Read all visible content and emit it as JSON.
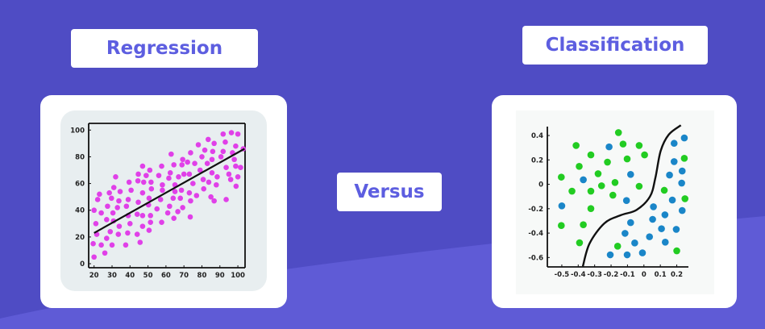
{
  "labels": {
    "regression": "Regression",
    "classification": "Classification",
    "versus": "Versus"
  },
  "colors": {
    "background": "#4f4cc4",
    "background_curve": "#5f5bd6",
    "label_text": "#5d5ee0",
    "regression_point": "#e040e8",
    "class_green": "#22cc22",
    "class_blue": "#1a86c8",
    "line": "#111111"
  },
  "chart_data": [
    {
      "type": "scatter",
      "title": "",
      "xlim": [
        17,
        104
      ],
      "ylim": [
        -3,
        105
      ],
      "x_ticks": [
        "20",
        "30",
        "40",
        "50",
        "60",
        "70",
        "80",
        "90",
        "100"
      ],
      "y_ticks": [
        "0",
        "20",
        "40",
        "60",
        "80",
        "100"
      ],
      "fit_line": [
        [
          20,
          23
        ],
        [
          103.7,
          86
        ]
      ],
      "points": [
        [
          20,
          5
        ],
        [
          19.5,
          15
        ],
        [
          21.5,
          22
        ],
        [
          21,
          30
        ],
        [
          20,
          40
        ],
        [
          22,
          48
        ],
        [
          23,
          52
        ],
        [
          24,
          38
        ],
        [
          24,
          14
        ],
        [
          26,
          8
        ],
        [
          27,
          19
        ],
        [
          27,
          33
        ],
        [
          27.5,
          43
        ],
        [
          28.5,
          53
        ],
        [
          29.7,
          49
        ],
        [
          29,
          24
        ],
        [
          30,
          14
        ],
        [
          30.5,
          38
        ],
        [
          30.8,
          32
        ],
        [
          31,
          57
        ],
        [
          32,
          65
        ],
        [
          33,
          42
        ],
        [
          33.5,
          22
        ],
        [
          33.8,
          47
        ],
        [
          34,
          28
        ],
        [
          34.5,
          54
        ],
        [
          37.6,
          14
        ],
        [
          38,
          43
        ],
        [
          38.7,
          23
        ],
        [
          39,
          36
        ],
        [
          39,
          48
        ],
        [
          39.5,
          61
        ],
        [
          40,
          30
        ],
        [
          40.6,
          55
        ],
        [
          44,
          22
        ],
        [
          44,
          37
        ],
        [
          44.4,
          62
        ],
        [
          44.6,
          67
        ],
        [
          44.6,
          46
        ],
        [
          45.6,
          16
        ],
        [
          47,
          53
        ],
        [
          47,
          73
        ],
        [
          47,
          36
        ],
        [
          47,
          28
        ],
        [
          47.6,
          61
        ],
        [
          49,
          66
        ],
        [
          50.3,
          44
        ],
        [
          50.6,
          25
        ],
        [
          50.6,
          49
        ],
        [
          51,
          70
        ],
        [
          51.4,
          31
        ],
        [
          51.4,
          36
        ],
        [
          51.7,
          61
        ],
        [
          51.9,
          56
        ],
        [
          55,
          41
        ],
        [
          56,
          66
        ],
        [
          57,
          48
        ],
        [
          57.6,
          31
        ],
        [
          57.6,
          73
        ],
        [
          58,
          59
        ],
        [
          58,
          55
        ],
        [
          61,
          38
        ],
        [
          61.6,
          64
        ],
        [
          62,
          43
        ],
        [
          62.4,
          68
        ],
        [
          62.9,
          82
        ],
        [
          64,
          49
        ],
        [
          64.4,
          34
        ],
        [
          64.4,
          74
        ],
        [
          65,
          54
        ],
        [
          65,
          59
        ],
        [
          66.6,
          39
        ],
        [
          67,
          65
        ],
        [
          68,
          49
        ],
        [
          68.6,
          55
        ],
        [
          68.9,
          74
        ],
        [
          69.3,
          42
        ],
        [
          69.3,
          78
        ],
        [
          70,
          67
        ],
        [
          72,
          76
        ],
        [
          73,
          67
        ],
        [
          73,
          53
        ],
        [
          73.5,
          35
        ],
        [
          73.7,
          47
        ],
        [
          73.7,
          83
        ],
        [
          75,
          60
        ],
        [
          76,
          75
        ],
        [
          77,
          51
        ],
        [
          78,
          89
        ],
        [
          79,
          70
        ],
        [
          80,
          80
        ],
        [
          80.7,
          63
        ],
        [
          81,
          56
        ],
        [
          81.6,
          85
        ],
        [
          83,
          75
        ],
        [
          83.5,
          93
        ],
        [
          83.8,
          61
        ],
        [
          85,
          50
        ],
        [
          85.6,
          68
        ],
        [
          85.6,
          78
        ],
        [
          86,
          84
        ],
        [
          86.8,
          47
        ],
        [
          86.8,
          90
        ],
        [
          88,
          59
        ],
        [
          88.5,
          65
        ],
        [
          90.6,
          80
        ],
        [
          91.8,
          84
        ],
        [
          91.8,
          97
        ],
        [
          93,
          91
        ],
        [
          93.5,
          72
        ],
        [
          93.5,
          48
        ],
        [
          95,
          67
        ],
        [
          96,
          63
        ],
        [
          96.4,
          98
        ],
        [
          97,
          83
        ],
        [
          98,
          78
        ],
        [
          98.8,
          88
        ],
        [
          98.8,
          73
        ],
        [
          99,
          58
        ],
        [
          100,
          65
        ],
        [
          100,
          97
        ],
        [
          101.5,
          72
        ],
        [
          103,
          86
        ]
      ]
    },
    {
      "type": "scatter",
      "title": "",
      "xlim": [
        -0.588,
        0.271
      ],
      "ylim": [
        -0.677,
        0.473
      ],
      "x_ticks": [
        "-0.5",
        "-0.4",
        "-0.3",
        "-0.2",
        "-0.1",
        "0",
        "0.1",
        "0.2"
      ],
      "y_ticks": [
        "0.4",
        "0.2",
        "0",
        "-0.2",
        "-0.4",
        "-0.6"
      ],
      "decision_boundary": [
        [
          -0.372,
          -0.673
        ],
        [
          -0.331,
          -0.485
        ],
        [
          -0.241,
          -0.32
        ],
        [
          -0.143,
          -0.254
        ],
        [
          -0.045,
          -0.21
        ],
        [
          0.037,
          -0.1
        ],
        [
          0.07,
          0.054
        ],
        [
          0.102,
          0.274
        ],
        [
          0.151,
          0.407
        ],
        [
          0.225,
          0.484
        ]
      ],
      "series": [
        {
          "color": "#22cc22",
          "points": [
            [
              -0.155,
              0.424
            ],
            [
              -0.413,
              0.318
            ],
            [
              -0.127,
              0.33
            ],
            [
              -0.029,
              0.318
            ],
            [
              -0.323,
              0.241
            ],
            [
              0.004,
              0.241
            ],
            [
              -0.102,
              0.208
            ],
            [
              -0.222,
              0.182
            ],
            [
              -0.394,
              0.147
            ],
            [
              -0.503,
              0.059
            ],
            [
              -0.279,
              0.087
            ],
            [
              -0.176,
              0.015
            ],
            [
              -0.258,
              -0.012
            ],
            [
              -0.029,
              -0.016
            ],
            [
              -0.438,
              -0.056
            ],
            [
              -0.323,
              -0.056
            ],
            [
              -0.189,
              -0.089
            ],
            [
              -0.323,
              -0.199
            ],
            [
              -0.503,
              -0.338
            ],
            [
              -0.369,
              -0.331
            ],
            [
              -0.392,
              -0.479
            ],
            [
              -0.16,
              -0.507
            ],
            [
              0.124,
              -0.049
            ],
            [
              0.246,
              0.213
            ],
            [
              0.25,
              -0.118
            ],
            [
              0.2,
              -0.545
            ]
          ]
        },
        {
          "color": "#1a86c8",
          "points": [
            [
              -0.212,
              0.307
            ],
            [
              0.184,
              0.336
            ],
            [
              0.246,
              0.38
            ],
            [
              0.184,
              0.186
            ],
            [
              0.233,
              0.109
            ],
            [
              -0.081,
              0.081
            ],
            [
              0.156,
              0.076
            ],
            [
              -0.369,
              0.037
            ],
            [
              0.23,
              0.01
            ],
            [
              -0.106,
              -0.133
            ],
            [
              0.173,
              -0.129
            ],
            [
              -0.5,
              -0.177
            ],
            [
              0.058,
              -0.184
            ],
            [
              0.233,
              -0.215
            ],
            [
              0.128,
              -0.25
            ],
            [
              0.053,
              -0.287
            ],
            [
              -0.081,
              -0.314
            ],
            [
              0.107,
              -0.364
            ],
            [
              0.197,
              -0.369
            ],
            [
              -0.115,
              -0.402
            ],
            [
              0.034,
              -0.43
            ],
            [
              -0.056,
              -0.481
            ],
            [
              0.13,
              -0.474
            ],
            [
              -0.205,
              -0.578
            ],
            [
              -0.102,
              -0.578
            ],
            [
              -0.009,
              -0.562
            ]
          ]
        }
      ]
    }
  ]
}
